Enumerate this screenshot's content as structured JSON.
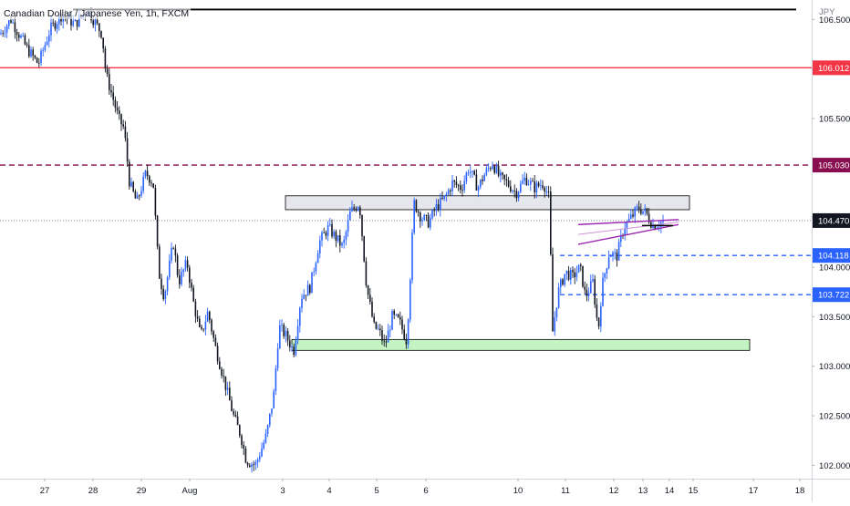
{
  "header": {
    "symbol": "Canadian Dollar / Japanese Yen, 1h, FXCM"
  },
  "chart_data": {
    "type": "candlestick",
    "title": "Canadian Dollar / Japanese Yen, 1h, FXCM",
    "currency": "JPY",
    "ylim": [
      101.85,
      106.65
    ],
    "x_tick_labels": [
      "27",
      "28",
      "29",
      "Aug",
      "3",
      "4",
      "5",
      "6",
      "10",
      "11",
      "12",
      "13",
      "14",
      "15",
      "17",
      "18"
    ],
    "y_tick_labels": [
      "106.500",
      "106.000",
      "105.500",
      "104.500",
      "104.000",
      "103.500",
      "103.000",
      "102.500",
      "102.000"
    ],
    "price_labels": [
      {
        "value": 106.012,
        "text": "106.012",
        "color": "#f23645"
      },
      {
        "value": 105.03,
        "text": "105.030",
        "color": "#880e4f"
      },
      {
        "value": 104.47,
        "text": "104.470",
        "color": "#131722"
      },
      {
        "value": 104.118,
        "text": "104.118",
        "color": "#2962ff"
      },
      {
        "value": 103.722,
        "text": "103.722",
        "color": "#2962ff"
      }
    ],
    "horizontal_levels": [
      {
        "value": 106.6,
        "style": "solid",
        "color": "#000000"
      },
      {
        "value": 106.012,
        "style": "solid",
        "color": "#f23645"
      },
      {
        "value": 105.03,
        "style": "dashed",
        "color": "#880e4f"
      },
      {
        "value": 104.47,
        "style": "dotted",
        "color": "#787b86"
      },
      {
        "value": 104.118,
        "style": "dashed",
        "color": "#2962ff"
      },
      {
        "value": 103.722,
        "style": "dashed",
        "color": "#2962ff"
      }
    ],
    "zones": [
      {
        "name": "resistance",
        "top": 104.72,
        "bottom": 104.58,
        "color": "#d1d4dc"
      },
      {
        "name": "support",
        "top": 103.27,
        "bottom": 103.16,
        "color": "#a5eea0"
      }
    ],
    "trendline": {
      "from": [
        104.23,
        104.43
      ],
      "to": [
        104.43,
        104.48
      ],
      "color": "#9c27b0"
    },
    "keypoints": [
      [
        0,
        106.35
      ],
      [
        12,
        106.5
      ],
      [
        30,
        106.2
      ],
      [
        42,
        106.05
      ],
      [
        55,
        106.4
      ],
      [
        68,
        106.55
      ],
      [
        82,
        106.45
      ],
      [
        96,
        106.6
      ],
      [
        112,
        106.35
      ],
      [
        116,
        105.95
      ],
      [
        124,
        105.7
      ],
      [
        130,
        105.5
      ],
      [
        136,
        105.4
      ],
      [
        142,
        104.85
      ],
      [
        150,
        104.65
      ],
      [
        160,
        104.95
      ],
      [
        168,
        104.85
      ],
      [
        174,
        103.95
      ],
      [
        180,
        103.7
      ],
      [
        190,
        104.25
      ],
      [
        196,
        103.85
      ],
      [
        205,
        104.05
      ],
      [
        212,
        103.65
      ],
      [
        220,
        103.3
      ],
      [
        228,
        103.55
      ],
      [
        236,
        103.2
      ],
      [
        246,
        102.85
      ],
      [
        256,
        102.5
      ],
      [
        264,
        102.3
      ],
      [
        270,
        102.05
      ],
      [
        280,
        102.0
      ],
      [
        292,
        102.3
      ],
      [
        300,
        102.7
      ],
      [
        306,
        103.4
      ],
      [
        314,
        103.3
      ],
      [
        322,
        103.15
      ],
      [
        330,
        103.7
      ],
      [
        340,
        103.8
      ],
      [
        350,
        104.25
      ],
      [
        360,
        104.4
      ],
      [
        368,
        104.3
      ],
      [
        376,
        104.2
      ],
      [
        384,
        104.55
      ],
      [
        394,
        104.65
      ],
      [
        402,
        103.8
      ],
      [
        410,
        103.4
      ],
      [
        416,
        103.35
      ],
      [
        422,
        103.2
      ],
      [
        430,
        103.5
      ],
      [
        438,
        103.45
      ],
      [
        446,
        103.25
      ],
      [
        454,
        104.65
      ],
      [
        462,
        104.5
      ],
      [
        470,
        104.45
      ],
      [
        478,
        104.6
      ],
      [
        488,
        104.7
      ],
      [
        496,
        104.85
      ],
      [
        506,
        104.8
      ],
      [
        514,
        105.0
      ],
      [
        524,
        104.8
      ],
      [
        532,
        104.95
      ],
      [
        540,
        105.05
      ],
      [
        548,
        104.9
      ],
      [
        556,
        104.85
      ],
      [
        566,
        104.75
      ],
      [
        576,
        104.9
      ],
      [
        586,
        104.8
      ],
      [
        596,
        104.85
      ],
      [
        602,
        104.7
      ],
      [
        606,
        103.35
      ],
      [
        612,
        103.75
      ],
      [
        620,
        103.95
      ],
      [
        628,
        103.9
      ],
      [
        636,
        104.0
      ],
      [
        642,
        103.7
      ],
      [
        650,
        103.85
      ],
      [
        656,
        103.35
      ],
      [
        660,
        103.8
      ],
      [
        668,
        104.15
      ],
      [
        676,
        104.1
      ],
      [
        684,
        104.4
      ],
      [
        692,
        104.5
      ],
      [
        700,
        104.6
      ],
      [
        708,
        104.55
      ],
      [
        716,
        104.42
      ],
      [
        724,
        104.45
      ],
      [
        728,
        104.47
      ]
    ]
  }
}
